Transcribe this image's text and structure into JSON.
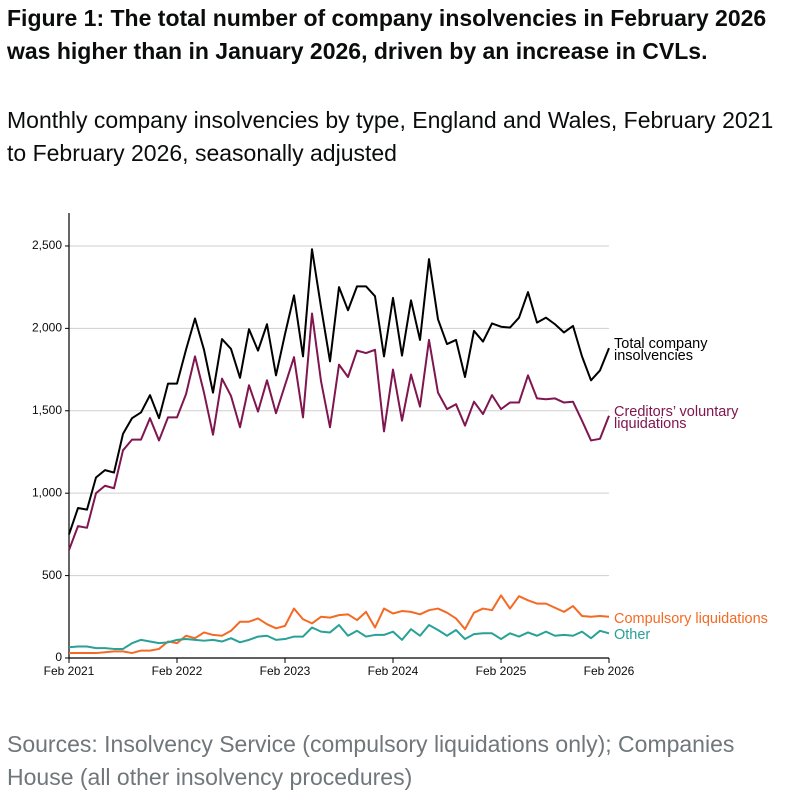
{
  "chart_data": {
    "type": "line",
    "title": "Figure 1: The total number of company insolvencies in February 2026 was higher than in January 2026, driven by an increase in CVLs.",
    "subtitle": "Monthly company insolvencies by type, England and Wales, February 2021 to February 2026, seasonally adjusted",
    "source": "Sources: Insolvency Service (compulsory liquidations only); Companies House (all other insolvency procedures)",
    "categories": [
      "Feb 2021",
      null,
      null,
      null,
      null,
      null,
      null,
      null,
      null,
      null,
      null,
      null,
      "Feb 2022",
      null,
      null,
      null,
      null,
      null,
      null,
      null,
      null,
      null,
      null,
      null,
      "Feb 2023",
      null,
      null,
      null,
      null,
      null,
      null,
      null,
      null,
      null,
      null,
      null,
      "Feb 2024",
      null,
      null,
      null,
      null,
      null,
      null,
      null,
      null,
      null,
      null,
      null,
      "Feb 2025",
      null,
      null,
      null,
      null,
      null,
      null,
      null,
      null,
      null,
      null,
      null,
      "Feb 2026"
    ],
    "ylim": [
      0,
      2700
    ],
    "yticks": [
      0,
      500,
      {
        "value": 1000,
        "label": "1,000"
      },
      {
        "value": 1500,
        "label": "1,500"
      },
      {
        "value": 2000,
        "label": "2,000"
      },
      {
        "value": 2500,
        "label": "2,500"
      }
    ],
    "grid": true,
    "series": [
      {
        "name": "Total company insolvencies",
        "color": "#000000",
        "values": [
          750,
          910,
          900,
          1095,
          1140,
          1125,
          1360,
          1455,
          1490,
          1595,
          1455,
          1665,
          1665,
          1870,
          2060,
          1870,
          1610,
          1935,
          1875,
          1700,
          1995,
          1865,
          2025,
          1715,
          1965,
          2200,
          1830,
          2480,
          2130,
          1800,
          2250,
          2110,
          2255,
          2255,
          2195,
          1830,
          2185,
          1835,
          2170,
          1930,
          2420,
          2055,
          1905,
          1930,
          1705,
          1985,
          1920,
          2030,
          2010,
          2005,
          2065,
          2220,
          2035,
          2065,
          2025,
          1975,
          2015,
          1830,
          1685,
          1745,
          1880
        ]
      },
      {
        "name": "Creditors’ voluntary liquidations",
        "color": "#801650",
        "values": [
          655,
          800,
          790,
          1000,
          1045,
          1030,
          1260,
          1325,
          1325,
          1455,
          1320,
          1460,
          1460,
          1600,
          1830,
          1610,
          1355,
          1695,
          1590,
          1400,
          1655,
          1495,
          1685,
          1485,
          1655,
          1825,
          1460,
          2090,
          1680,
          1400,
          1780,
          1705,
          1865,
          1850,
          1870,
          1375,
          1750,
          1440,
          1720,
          1525,
          1930,
          1610,
          1510,
          1540,
          1410,
          1555,
          1480,
          1595,
          1510,
          1550,
          1550,
          1715,
          1575,
          1570,
          1575,
          1550,
          1555,
          1440,
          1320,
          1330,
          1470
        ]
      },
      {
        "name": "Compulsory liquidations",
        "color": "#f46a25",
        "values": [
          30,
          30,
          30,
          30,
          35,
          40,
          40,
          30,
          45,
          45,
          55,
          100,
          90,
          135,
          120,
          155,
          140,
          135,
          165,
          220,
          220,
          240,
          205,
          180,
          195,
          300,
          235,
          210,
          250,
          245,
          260,
          265,
          230,
          280,
          185,
          300,
          270,
          285,
          280,
          265,
          290,
          300,
          275,
          240,
          175,
          275,
          300,
          290,
          380,
          300,
          375,
          350,
          330,
          330,
          305,
          280,
          315,
          255,
          250,
          255,
          250
        ]
      },
      {
        "name": "Other",
        "color": "#28a197",
        "values": [
          65,
          70,
          70,
          60,
          60,
          55,
          55,
          90,
          110,
          100,
          90,
          95,
          110,
          115,
          110,
          105,
          110,
          100,
          120,
          95,
          110,
          130,
          135,
          110,
          115,
          130,
          130,
          185,
          160,
          155,
          200,
          135,
          165,
          130,
          140,
          140,
          160,
          110,
          175,
          135,
          200,
          170,
          135,
          170,
          115,
          145,
          150,
          150,
          115,
          150,
          130,
          155,
          135,
          160,
          135,
          140,
          135,
          160,
          120,
          165,
          150
        ]
      }
    ]
  }
}
